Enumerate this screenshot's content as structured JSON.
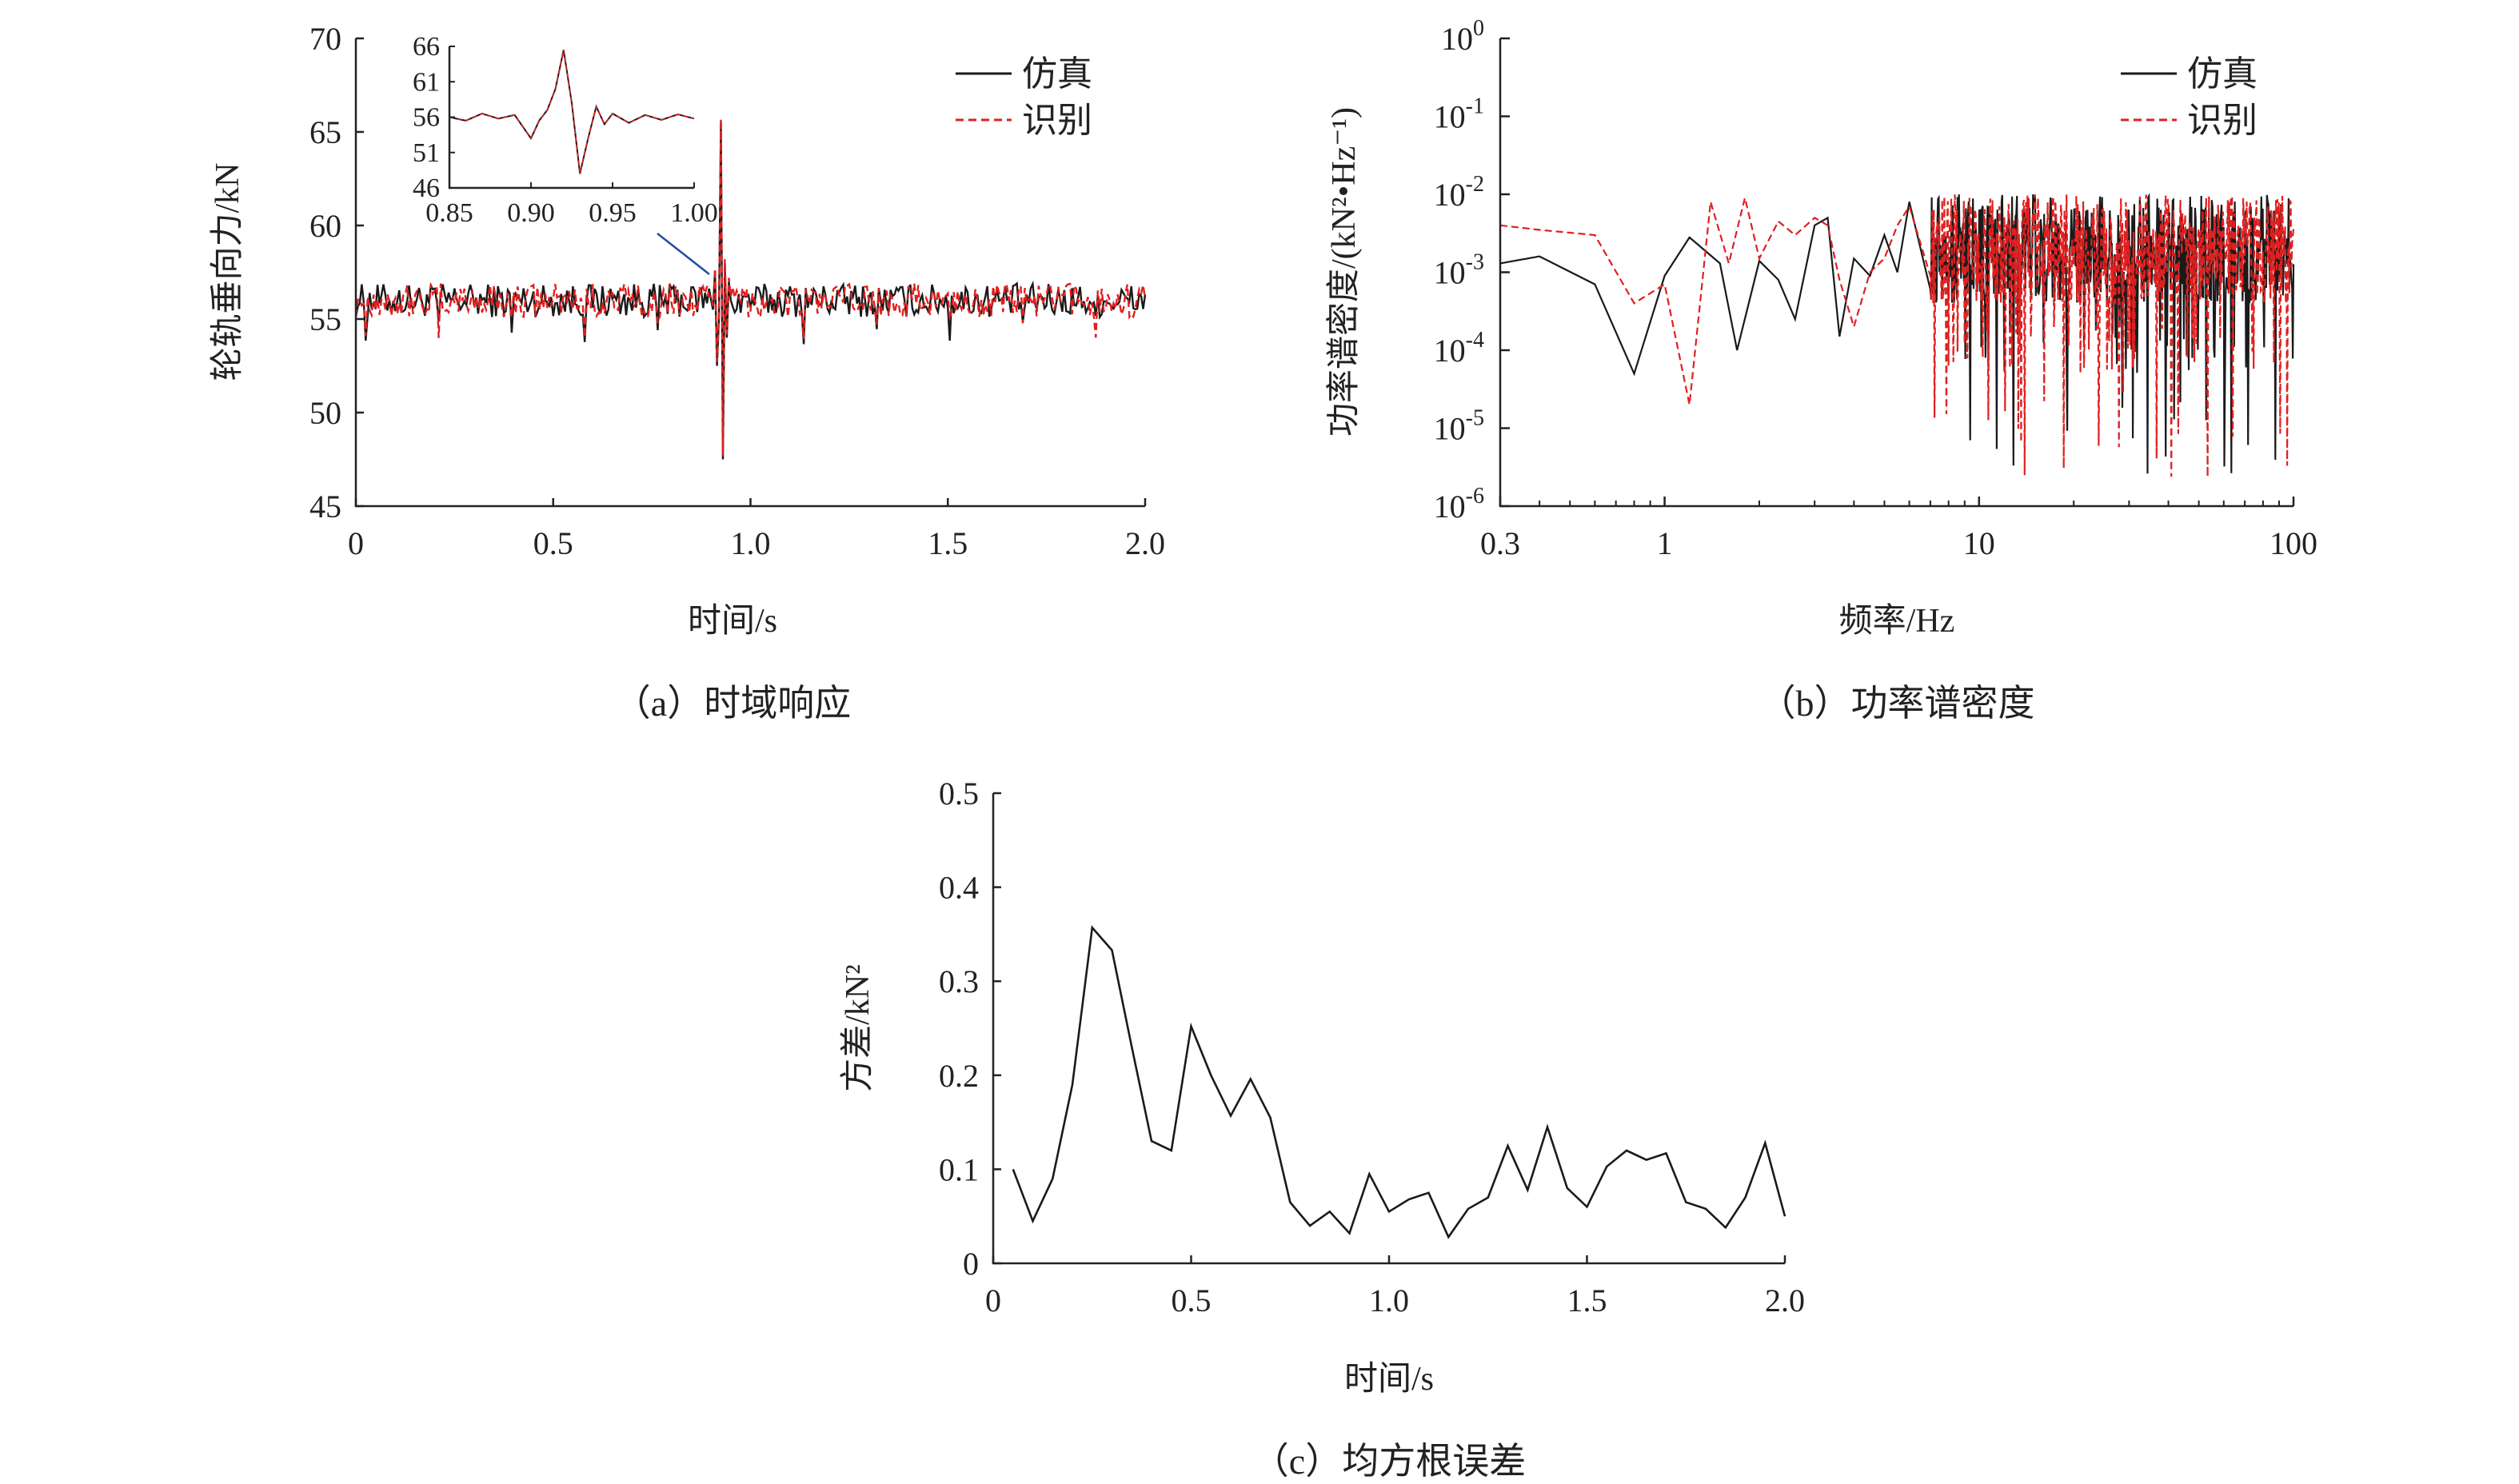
{
  "chart_data": [
    {
      "id": "a",
      "type": "line",
      "caption": "（a）时域响应",
      "xlabel": "时间/s",
      "ylabel": "轮轨垂向力/kN",
      "xlim": [
        0,
        2.0
      ],
      "ylim": [
        45,
        70
      ],
      "xticks": [
        "0",
        "0.5",
        "1.0",
        "1.5",
        "2.0"
      ],
      "yticks": [
        "45",
        "50",
        "55",
        "60",
        "65",
        "70"
      ],
      "legend_position": "top-right",
      "series": [
        {
          "name": "仿真",
          "color": "#1a1a1a",
          "style": "solid",
          "baseline": 56,
          "noise_amplitude": 0.9
        },
        {
          "name": "识别",
          "color": "#e02020",
          "style": "dashed",
          "baseline": 56,
          "noise_amplitude": 0.9
        }
      ],
      "impulse": {
        "x": [
          0.9,
          0.905,
          0.91,
          0.915,
          0.92,
          0.925,
          0.93,
          0.935,
          0.94,
          0.945,
          0.95
        ],
        "y": [
          56,
          55.5,
          57.5,
          52.5,
          55,
          65.5,
          47.5,
          58,
          54,
          57,
          56
        ]
      },
      "inset": {
        "xlim": [
          0.85,
          1.0
        ],
        "ylim": [
          46,
          66
        ],
        "xticks": [
          "0.85",
          "0.90",
          "0.95",
          "1.00"
        ],
        "yticks": [
          "46",
          "51",
          "56",
          "61",
          "66"
        ],
        "x": [
          0.85,
          0.86,
          0.87,
          0.88,
          0.89,
          0.9,
          0.905,
          0.91,
          0.915,
          0.92,
          0.925,
          0.93,
          0.935,
          0.94,
          0.945,
          0.95,
          0.96,
          0.97,
          0.98,
          0.99,
          1.0
        ],
        "y": [
          56,
          55.5,
          56.5,
          55.8,
          56.3,
          53,
          55.5,
          57,
          60,
          65.5,
          58,
          48,
          53,
          57.5,
          55,
          56.5,
          55.2,
          56.3,
          55.6,
          56.4,
          55.8
        ]
      }
    },
    {
      "id": "b",
      "type": "line",
      "caption": "（b）功率谱密度",
      "xlabel": "频率/Hz",
      "ylabel": "功率谱密度/(kN²•Hz⁻¹)",
      "xscale": "log",
      "yscale": "log",
      "xlim": [
        0.3,
        100
      ],
      "ylim": [
        1e-06,
        1
      ],
      "xticks": [
        "0.3",
        "1",
        "10",
        "100"
      ],
      "yticks": [
        "10",
        "10",
        "10",
        "10",
        "10",
        "10",
        "10"
      ],
      "ytick_exponents": [
        "-6",
        "-5",
        "-4",
        "-3",
        "-2",
        "-1",
        "0"
      ],
      "legend_position": "top-right",
      "series": [
        {
          "name": "仿真",
          "color": "#1a1a1a",
          "style": "solid",
          "x": [
            0.3,
            0.4,
            0.6,
            0.8,
            1.0,
            1.2,
            1.5,
            1.7,
            2.0,
            2.3,
            2.6,
            3.0,
            3.3,
            3.6,
            4.0,
            4.5,
            5.0,
            5.5,
            6.0,
            7.0
          ],
          "y": [
            0.0013,
            0.0016,
            0.0007,
            5e-05,
            0.0009,
            0.0028,
            0.0013,
            0.0001,
            0.0014,
            0.0008,
            0.00025,
            0.004,
            0.005,
            0.00015,
            0.0015,
            0.0009,
            0.003,
            0.001,
            0.008,
            0.0006
          ],
          "dense_band": {
            "x_from": 7,
            "x_to": 100,
            "y_mean": 0.002,
            "dips_min": 2e-06
          }
        },
        {
          "name": "识别",
          "color": "#e02020",
          "style": "dashed",
          "x": [
            0.3,
            0.4,
            0.6,
            0.8,
            1.0,
            1.2,
            1.4,
            1.6,
            1.8,
            2.0,
            2.3,
            2.6,
            3.0,
            3.3,
            3.6,
            4.0,
            4.5,
            5.0,
            5.5,
            6.0,
            7.0
          ],
          "y": [
            0.004,
            0.0035,
            0.003,
            0.0004,
            0.0007,
            2e-05,
            0.008,
            0.0013,
            0.009,
            0.0015,
            0.0045,
            0.003,
            0.005,
            0.004,
            0.0008,
            0.0002,
            0.001,
            0.0015,
            0.004,
            0.007,
            0.0009
          ],
          "dense_band": {
            "x_from": 7,
            "x_to": 100,
            "y_mean": 0.002,
            "dips_min": 2e-06
          }
        }
      ]
    },
    {
      "id": "c",
      "type": "line",
      "caption": "（c）均方根误差",
      "xlabel": "时间/s",
      "ylabel": "方差/kN²",
      "xlim": [
        0,
        2.0
      ],
      "ylim": [
        0,
        0.5
      ],
      "xticks": [
        "0",
        "0.5",
        "1.0",
        "1.5",
        "2.0"
      ],
      "yticks": [
        "0",
        "0.1",
        "0.2",
        "0.3",
        "0.4",
        "0.5"
      ],
      "series": [
        {
          "color": "#1a1a1a",
          "style": "solid",
          "x": [
            0.05,
            0.1,
            0.15,
            0.2,
            0.25,
            0.3,
            0.35,
            0.4,
            0.45,
            0.5,
            0.55,
            0.6,
            0.65,
            0.7,
            0.75,
            0.8,
            0.85,
            0.9,
            0.95,
            1.0,
            1.05,
            1.1,
            1.15,
            1.2,
            1.25,
            1.3,
            1.35,
            1.4,
            1.45,
            1.5,
            1.55,
            1.6,
            1.65,
            1.7,
            1.75,
            1.8,
            1.85,
            1.9,
            1.95,
            2.0
          ],
          "y": [
            0.1,
            0.045,
            0.09,
            0.19,
            0.357,
            0.333,
            0.23,
            0.13,
            0.12,
            0.252,
            0.2,
            0.157,
            0.196,
            0.155,
            0.065,
            0.04,
            0.055,
            0.032,
            0.095,
            0.055,
            0.068,
            0.075,
            0.028,
            0.058,
            0.07,
            0.125,
            0.078,
            0.145,
            0.08,
            0.06,
            0.103,
            0.12,
            0.11,
            0.117,
            0.065,
            0.058,
            0.038,
            0.07,
            0.128,
            0.05
          ]
        }
      ]
    }
  ]
}
